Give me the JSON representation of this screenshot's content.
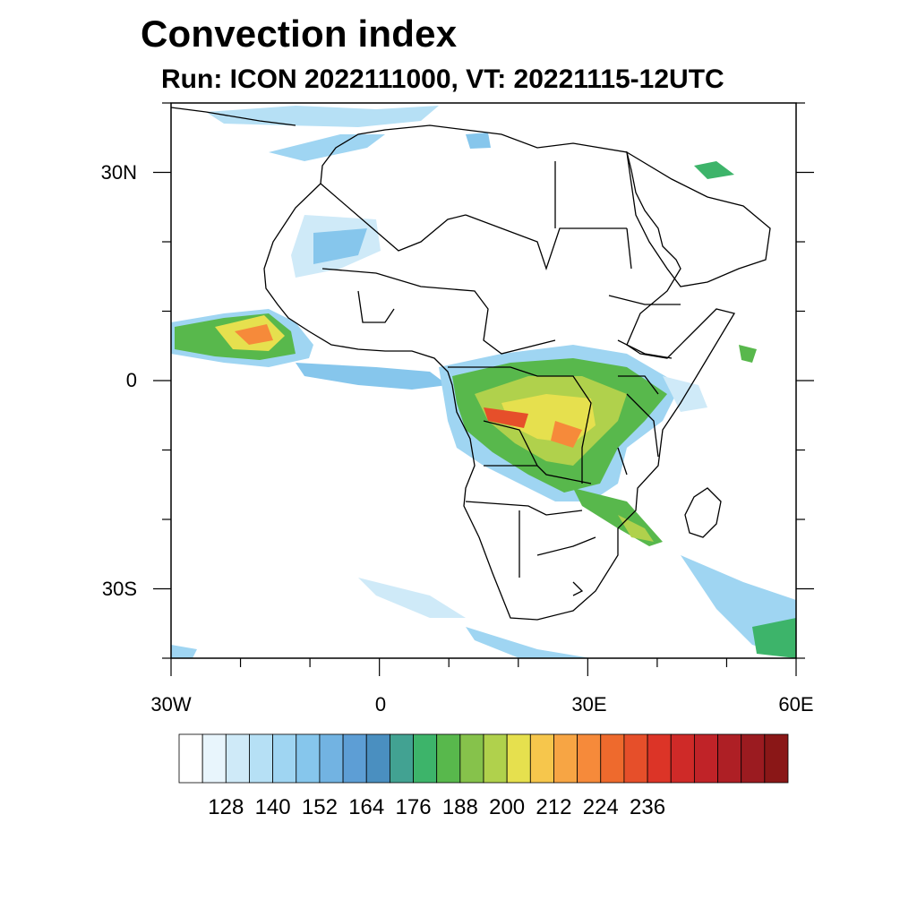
{
  "header": {
    "title": "Convection index",
    "subtitle": "Run: ICON 2022111000,  VT: 20221115-12UTC"
  },
  "map": {
    "extent": {
      "lon": [
        -30,
        60
      ],
      "lat": [
        -40,
        40
      ]
    },
    "lat_labels": [
      "30N",
      "0",
      "30S"
    ],
    "lon_labels": [
      "30W",
      "0",
      "30E",
      "60E"
    ]
  },
  "colorbar": {
    "colors": [
      "#ffffff",
      "#e8f5fc",
      "#cfeaf8",
      "#b6e0f5",
      "#9fd5f2",
      "#86c6ec",
      "#72b3e2",
      "#5d9ed5",
      "#4a8fc0",
      "#42a292",
      "#3db46a",
      "#58b84c",
      "#86c24b",
      "#b0d14c",
      "#e6e04e",
      "#f6c64c",
      "#f7a544",
      "#f68a3a",
      "#ee6a2d",
      "#e64f2a",
      "#dc3427",
      "#cf2a28",
      "#c02328",
      "#ae1f25",
      "#9b1b20",
      "#8a1717"
    ],
    "tick_labels": [
      "128",
      "140",
      "152",
      "164",
      "176",
      "188",
      "200",
      "212",
      "224",
      "236"
    ]
  }
}
